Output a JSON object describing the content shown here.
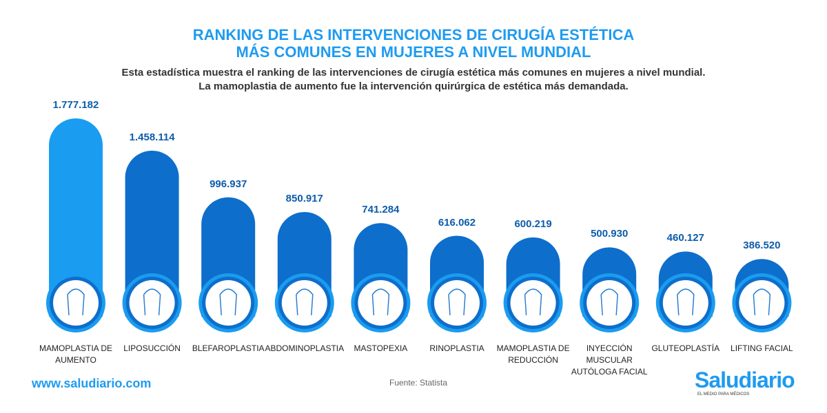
{
  "chart_data": {
    "type": "bar",
    "title": [
      "RANKING DE LAS INTERVENCIONES DE CIRUGÍA ESTÉTICA",
      "MÁS COMUNES EN MUJERES A NIVEL MUNDIAL"
    ],
    "subtitle": [
      "Esta estadística muestra el ranking de las intervenciones de cirugía estética más comunes en mujeres a nivel mundial.",
      "La mamoplastia de aumento fue la intervención quirúrgica de estética más demandada."
    ],
    "categories": [
      "MAMOPLASTIA DE AUMENTO",
      "LIPOSUCCIÓN",
      "BLEFAROPLASTIA",
      "ABDOMINOPLASTIA",
      "MASTOPEXIA",
      "RINOPLASTIA",
      "MAMOPLASTIA DE REDUCCIÓN",
      "INYECCIÓN MUSCULAR AUTÓLOGA FACIAL",
      "GLUTEOPLASTÍA",
      "LIFTING FACIAL"
    ],
    "values": [
      1777182,
      1458114,
      996937,
      850917,
      741284,
      616062,
      600219,
      500930,
      460127,
      386520
    ],
    "value_labels": [
      "1.777.182",
      "1.458.114",
      "996.937",
      "850.917",
      "741.284",
      "616.062",
      "600.219",
      "500.930",
      "460.127",
      "386.520"
    ],
    "colors": [
      "#1a9cf0",
      "#0e6ecb",
      "#0e6ecb",
      "#0e6ecb",
      "#0e6ecb",
      "#0e6ecb",
      "#0e6ecb",
      "#0e6ecb",
      "#0e6ecb",
      "#0e6ecb"
    ]
  },
  "footer": {
    "website": "www.saludiario.com",
    "source": "Fuente: Statista",
    "logo": "Saludiario",
    "tagline": "EL MEDIO PARA MÉDICOS"
  }
}
